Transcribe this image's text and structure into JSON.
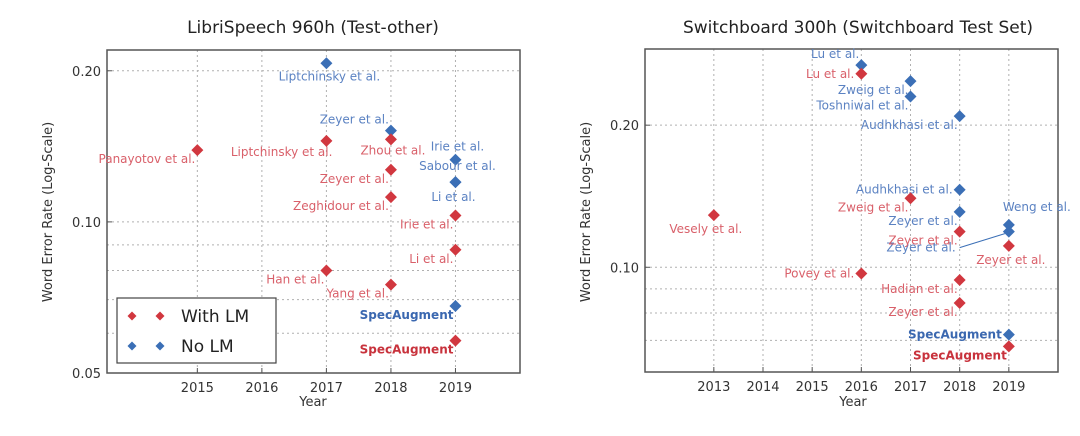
{
  "colors": {
    "with_lm": "#d1373f",
    "no_lm": "#3b6fb6"
  },
  "chart_data": [
    {
      "type": "scatter",
      "title": "LibriSpeech 960h (Test-other)",
      "xlabel": "Year",
      "ylabel": "Word Error Rate (Log-Scale)",
      "yscale": "log",
      "xlim": [
        2013.6,
        2020
      ],
      "ylim": [
        0.05,
        0.22
      ],
      "xticks": [
        2015,
        2016,
        2017,
        2018,
        2019
      ],
      "xtick_labels": [
        "2015",
        "2016",
        "2017",
        "2018",
        "2019"
      ],
      "yticks": [
        0.05,
        0.1,
        0.2
      ],
      "ytick_labels": [
        "0.05",
        "0.10",
        "0.20"
      ],
      "minor_yticks": [
        0.06,
        0.07,
        0.08,
        0.09
      ],
      "grid": true,
      "legend": {
        "placement": "lower-left",
        "entries": [
          {
            "label": "With LM",
            "series": "with_lm"
          },
          {
            "label": "No LM",
            "series": "no_lm"
          }
        ]
      },
      "points": [
        {
          "label": "Liptchinsky et al.",
          "series": "no_lm",
          "x": 2017,
          "y": 0.207,
          "label_side": "below-left"
        },
        {
          "label": "Zeyer et al.",
          "series": "no_lm",
          "x": 2018,
          "y": 0.152,
          "label_side": "above-left"
        },
        {
          "label": "Zhou et al.",
          "series": "with_lm",
          "x": 2018,
          "y": 0.146,
          "label_side": "below-left"
        },
        {
          "label": "Liptchinsky et al.",
          "series": "with_lm",
          "x": 2017,
          "y": 0.145,
          "label_side": "below-left"
        },
        {
          "label": "Panayotov et al.",
          "series": "with_lm",
          "x": 2015,
          "y": 0.139,
          "label_side": "below-left"
        },
        {
          "label": "Irie et al.",
          "series": "no_lm",
          "x": 2019,
          "y": 0.133,
          "label_side": "above"
        },
        {
          "label": "Zeyer et al.",
          "series": "with_lm",
          "x": 2018,
          "y": 0.127,
          "label_side": "below-left"
        },
        {
          "label": "Sabour et al.",
          "series": "no_lm",
          "x": 2019,
          "y": 0.12,
          "label_side": "above"
        },
        {
          "label": "Zeghidour et al.",
          "series": "with_lm",
          "x": 2018,
          "y": 0.112,
          "label_side": "below-left"
        },
        {
          "label": "Li et al.",
          "series": "no_lm",
          "x": 2019,
          "y": 0.12,
          "label_side": "below"
        },
        {
          "label": "Irie et al.",
          "series": "with_lm",
          "x": 2019,
          "y": 0.103,
          "label_side": "below-left"
        },
        {
          "label": "Li et al.",
          "series": "with_lm",
          "x": 2019,
          "y": 0.088,
          "label_side": "below-left"
        },
        {
          "label": "Han et al.",
          "series": "with_lm",
          "x": 2017,
          "y": 0.08,
          "label_side": "below-left"
        },
        {
          "label": "Yang et al.",
          "series": "with_lm",
          "x": 2018,
          "y": 0.075,
          "label_side": "below-left"
        },
        {
          "label": "SpecAugment",
          "series": "no_lm",
          "x": 2019,
          "y": 0.068,
          "label_side": "below-left",
          "bold": true
        },
        {
          "label": "SpecAugment",
          "series": "with_lm",
          "x": 2019,
          "y": 0.058,
          "label_side": "below-left",
          "bold": true
        }
      ]
    },
    {
      "type": "scatter",
      "title": "Switchboard 300h (Switchboard Test Set)",
      "xlabel": "Year",
      "ylabel": "Word Error Rate (Log-Scale)",
      "yscale": "log",
      "xlim": [
        2011.6,
        2020
      ],
      "ylim": [
        0.06,
        0.29
      ],
      "xticks": [
        2013,
        2014,
        2015,
        2016,
        2017,
        2018,
        2019
      ],
      "xtick_labels": [
        "2013",
        "2014",
        "2015",
        "2016",
        "2017",
        "2018",
        "2019"
      ],
      "yticks": [
        0.1,
        0.2
      ],
      "ytick_labels": [
        "0.10",
        "0.20"
      ],
      "minor_yticks": [
        0.07,
        0.08,
        0.09
      ],
      "grid": true,
      "points": [
        {
          "label": "Lu et al.",
          "series": "no_lm",
          "x": 2016,
          "y": 0.268,
          "label_side": "above-left"
        },
        {
          "label": "Lu et al.",
          "series": "with_lm",
          "x": 2016,
          "y": 0.257,
          "label_side": "left"
        },
        {
          "label": "Zweig et al.",
          "series": "no_lm",
          "x": 2017,
          "y": 0.248,
          "label_side": "below-left"
        },
        {
          "label": "Toshniwal et al.",
          "series": "no_lm",
          "x": 2017,
          "y": 0.23,
          "label_side": "below-left"
        },
        {
          "label": "Audhkhasi et al.",
          "series": "no_lm",
          "x": 2018,
          "y": 0.209,
          "label_side": "below-left"
        },
        {
          "label": "Audhkhasi et al.",
          "series": "no_lm",
          "x": 2018,
          "y": 0.146,
          "label_side": "left"
        },
        {
          "label": "Zweig et al.",
          "series": "with_lm",
          "x": 2017,
          "y": 0.14,
          "label_side": "below-left"
        },
        {
          "label": "Zeyer et al.",
          "series": "no_lm",
          "x": 2018,
          "y": 0.131,
          "label_side": "below-left"
        },
        {
          "label": "Weng et al.",
          "series": "no_lm",
          "x": 2019,
          "y": 0.123,
          "label_side": "above"
        },
        {
          "label": "Zeyer et al.",
          "series": "no_lm",
          "x": 2019,
          "y": 0.119,
          "label_side": "connector-left"
        },
        {
          "label": "Zeyer et al.",
          "series": "with_lm",
          "x": 2018,
          "y": 0.119,
          "label_side": "below-left"
        },
        {
          "label": "Zeyer et al.",
          "series": "with_lm",
          "x": 2019,
          "y": 0.111,
          "label_side": "below"
        },
        {
          "label": "Vesely et al.",
          "series": "with_lm",
          "x": 2013,
          "y": 0.129,
          "label_side": "below"
        },
        {
          "label": "Povey et al.",
          "series": "with_lm",
          "x": 2016,
          "y": 0.097,
          "label_side": "left"
        },
        {
          "label": "Hadian et al.",
          "series": "with_lm",
          "x": 2018,
          "y": 0.094,
          "label_side": "below-left"
        },
        {
          "label": "Zeyer et al.",
          "series": "with_lm",
          "x": 2018,
          "y": 0.084,
          "label_side": "below-left"
        },
        {
          "label": "SpecAugment",
          "series": "no_lm",
          "x": 2019,
          "y": 0.072,
          "label_side": "left",
          "bold": true
        },
        {
          "label": "SpecAugment",
          "series": "with_lm",
          "x": 2019,
          "y": 0.068,
          "label_side": "below-left",
          "bold": true
        }
      ]
    }
  ]
}
